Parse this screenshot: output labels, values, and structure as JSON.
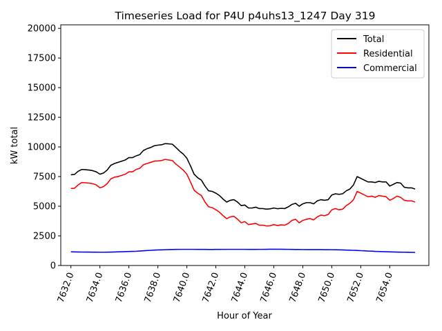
{
  "chart_data": {
    "type": "line",
    "title": "Timeseries Load for P4U p4uhs13_1247  Day 319",
    "xlabel": "Hour of Year",
    "ylabel": "kW total",
    "xlim": [
      7631.3,
      7656.7
    ],
    "ylim": [
      0,
      20300
    ],
    "xticks": [
      7632,
      7634,
      7636,
      7638,
      7640,
      7642,
      7644,
      7646,
      7648,
      7650,
      7652,
      7654
    ],
    "xtick_labels": [
      "7632.0",
      "7634.0",
      "7636.0",
      "7638.0",
      "7640.0",
      "7642.0",
      "7644.0",
      "7646.0",
      "7648.0",
      "7650.0",
      "7652.0",
      "7654.0"
    ],
    "yticks": [
      0,
      2500,
      5000,
      7500,
      10000,
      12500,
      15000,
      17500,
      20000
    ],
    "ytick_labels": [
      "0",
      "2500",
      "5000",
      "7500",
      "10000",
      "12500",
      "15000",
      "17500",
      "20000"
    ],
    "x_start": 7632.0,
    "x_step": 0.25,
    "legend_position": "top-right",
    "series": [
      {
        "name": "Total",
        "color": "#000000",
        "values": [
          7650,
          7680,
          7950,
          8100,
          8080,
          8050,
          8000,
          7900,
          7700,
          7800,
          8050,
          8450,
          8600,
          8700,
          8800,
          8900,
          9100,
          9100,
          9250,
          9350,
          9700,
          9850,
          9950,
          10100,
          10150,
          10180,
          10280,
          10260,
          10230,
          9950,
          9650,
          9400,
          9050,
          8400,
          7700,
          7400,
          7200,
          6700,
          6300,
          6250,
          6100,
          5900,
          5600,
          5350,
          5500,
          5550,
          5350,
          5050,
          5100,
          4850,
          4850,
          4920,
          4800,
          4800,
          4750,
          4780,
          4850,
          4790,
          4820,
          4800,
          4950,
          5150,
          5250,
          5000,
          5200,
          5300,
          5300,
          5200,
          5450,
          5550,
          5500,
          5550,
          5950,
          6050,
          6000,
          6050,
          6300,
          6450,
          6800,
          7500,
          7350,
          7200,
          7050,
          7050,
          7000,
          7100,
          7050,
          7050,
          6700,
          6850,
          7000,
          6950,
          6600,
          6550,
          6550,
          6450
        ],
        "line_series_values_note": "Total"
      },
      {
        "name": "Residential",
        "color": "#ff0000",
        "values": [
          6500,
          6520,
          6800,
          7000,
          6980,
          6950,
          6900,
          6800,
          6550,
          6650,
          6900,
          7300,
          7450,
          7500,
          7600,
          7700,
          7900,
          7900,
          8100,
          8200,
          8500,
          8600,
          8700,
          8800,
          8820,
          8850,
          8950,
          8900,
          8850,
          8550,
          8300,
          8050,
          7700,
          7050,
          6350,
          6100,
          5900,
          5350,
          4950,
          4880,
          4700,
          4500,
          4200,
          3950,
          4100,
          4150,
          3900,
          3600,
          3700,
          3450,
          3500,
          3550,
          3400,
          3400,
          3330,
          3350,
          3450,
          3370,
          3430,
          3400,
          3550,
          3800,
          3900,
          3600,
          3800,
          3900,
          3950,
          3850,
          4100,
          4250,
          4200,
          4300,
          4700,
          4800,
          4700,
          4750,
          5050,
          5250,
          5550,
          6250,
          6100,
          5950,
          5800,
          5850,
          5750,
          5900,
          5850,
          5800,
          5500,
          5650,
          5850,
          5750,
          5500,
          5450,
          5450,
          5350
        ]
      },
      {
        "name": "Commercial",
        "color": "#0000ff",
        "values": [
          1150,
          1145,
          1140,
          1135,
          1130,
          1130,
          1125,
          1125,
          1120,
          1120,
          1125,
          1130,
          1140,
          1150,
          1160,
          1170,
          1180,
          1190,
          1200,
          1220,
          1240,
          1260,
          1280,
          1300,
          1310,
          1320,
          1330,
          1340,
          1350,
          1355,
          1360,
          1360,
          1360,
          1360,
          1360,
          1355,
          1355,
          1355,
          1350,
          1350,
          1355,
          1355,
          1360,
          1360,
          1360,
          1360,
          1360,
          1360,
          1360,
          1355,
          1355,
          1355,
          1360,
          1360,
          1365,
          1370,
          1370,
          1370,
          1370,
          1365,
          1360,
          1355,
          1350,
          1350,
          1345,
          1340,
          1340,
          1340,
          1345,
          1340,
          1335,
          1335,
          1330,
          1325,
          1320,
          1310,
          1300,
          1290,
          1280,
          1270,
          1250,
          1240,
          1220,
          1210,
          1190,
          1180,
          1170,
          1160,
          1150,
          1140,
          1130,
          1125,
          1120,
          1115,
          1110,
          1105
        ]
      }
    ]
  }
}
